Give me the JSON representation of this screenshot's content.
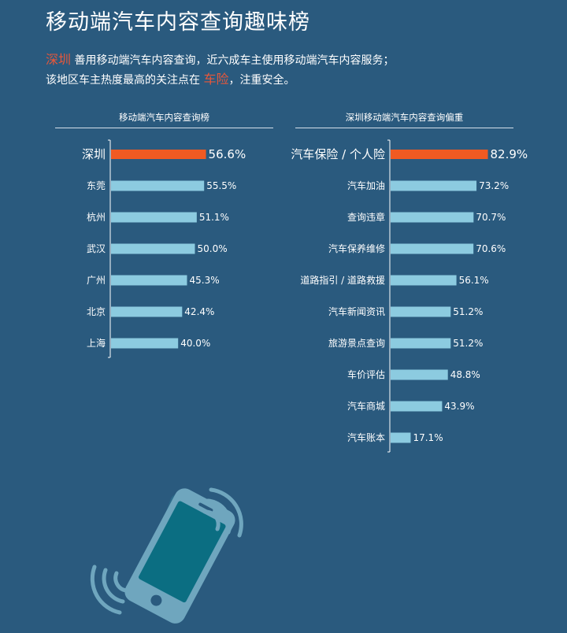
{
  "title": "移动端汽车内容查询趣味榜",
  "intro": {
    "city": "深圳",
    "line1_rest": " 善用移动端汽车内容查询，近六成车主使用移动端汽车内容服务；",
    "line2_pre": "该地区车主热度最高的关注点在 ",
    "focus": "车险",
    "line2_post": "，注重安全。"
  },
  "colors": {
    "highlight": "#f05a22",
    "bar": "#8ccbe0",
    "background": "#2a5a7e"
  },
  "chart_data": [
    {
      "type": "bar",
      "orientation": "horizontal",
      "title": "移动端汽车内容查询榜",
      "categories": [
        "深圳",
        "东莞",
        "杭州",
        "武汉",
        "广州",
        "北京",
        "上海"
      ],
      "values": [
        56.6,
        55.5,
        51.1,
        50.0,
        45.3,
        42.4,
        40.0
      ],
      "labels": [
        "56.6%",
        "55.5%",
        "51.1%",
        "50.0%",
        "45.3%",
        "42.4%",
        "40.0%"
      ],
      "highlight_index": 0,
      "unit": "%"
    },
    {
      "type": "bar",
      "orientation": "horizontal",
      "title": "深圳移动端汽车内容查询偏重",
      "categories": [
        "汽车保险 / 个人险",
        "汽车加油",
        "查询违章",
        "汽车保养维修",
        "道路指引 / 道路救援",
        "汽车新闻资讯",
        "旅游景点查询",
        "车价评估",
        "汽车商城",
        "汽车账本"
      ],
      "values": [
        82.9,
        73.2,
        70.7,
        70.6,
        56.1,
        51.2,
        51.2,
        48.8,
        43.9,
        17.1
      ],
      "labels": [
        "82.9%",
        "73.2%",
        "70.7%",
        "70.6%",
        "56.1%",
        "51.2%",
        "51.2%",
        "48.8%",
        "43.9%",
        "17.1%"
      ],
      "highlight_index": 0,
      "unit": "%"
    }
  ]
}
